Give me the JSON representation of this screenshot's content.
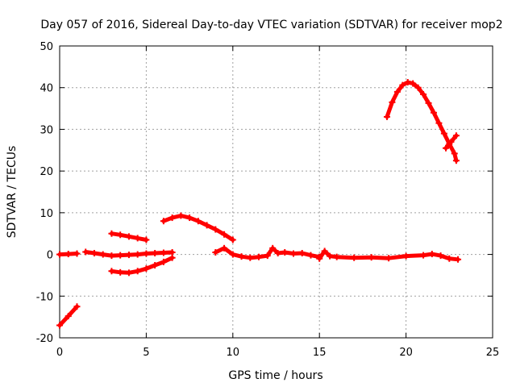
{
  "chart_data": {
    "type": "line",
    "title": "Day 057 of 2016, Sidereal Day-to-day VTEC variation (SDTVAR) for receiver mop2",
    "xlabel": "GPS time / hours",
    "ylabel": "SDTVAR / TECUs",
    "xlim": [
      0,
      25
    ],
    "ylim": [
      -20,
      50
    ],
    "xticks": [
      0,
      5,
      10,
      15,
      20,
      25
    ],
    "yticks": [
      -20,
      -10,
      0,
      10,
      20,
      30,
      40,
      50
    ],
    "xtick_labels": [
      "0",
      "5",
      "10",
      "15",
      "20",
      "25"
    ],
    "ytick_labels": [
      "-20",
      "-10",
      "0",
      "10",
      "20",
      "30",
      "40",
      "50"
    ],
    "grid": true,
    "legend": "none",
    "series_color": "#ff0000",
    "segments": [
      {
        "name": "seg-1",
        "x": [
          0.0,
          0.5,
          1.0
        ],
        "y": [
          -17.0,
          -14.8,
          -12.5
        ]
      },
      {
        "name": "seg-2",
        "x": [
          0.0,
          0.5,
          1.0
        ],
        "y": [
          0.0,
          0.1,
          0.2
        ]
      },
      {
        "name": "seg-3",
        "x": [
          1.5,
          2.0,
          2.5,
          3.0,
          3.5,
          4.0,
          4.5,
          5.0,
          5.5,
          6.0,
          6.5
        ],
        "y": [
          0.6,
          0.3,
          0.0,
          -0.3,
          -0.2,
          -0.1,
          0.0,
          0.2,
          0.3,
          0.4,
          0.5
        ]
      },
      {
        "name": "seg-4",
        "x": [
          3.0,
          3.5,
          4.0,
          4.5,
          5.0
        ],
        "y": [
          5.0,
          4.7,
          4.3,
          3.9,
          3.5
        ]
      },
      {
        "name": "seg-5",
        "x": [
          3.0,
          3.5,
          4.0,
          4.5,
          5.0,
          5.5,
          6.0,
          6.5
        ],
        "y": [
          -4.0,
          -4.3,
          -4.4,
          -4.0,
          -3.4,
          -2.6,
          -1.8,
          -0.8
        ]
      },
      {
        "name": "seg-6",
        "x": [
          6.0,
          6.5,
          7.0,
          7.5,
          8.0,
          8.5,
          9.0,
          9.5,
          10.0
        ],
        "y": [
          8.0,
          8.8,
          9.3,
          8.8,
          8.0,
          7.0,
          6.0,
          4.8,
          3.5
        ]
      },
      {
        "name": "seg-7",
        "x": [
          9.0,
          9.5,
          10.0,
          10.5,
          11.0,
          11.5,
          12.0,
          12.3,
          12.6,
          13.0,
          13.5,
          14.0,
          14.5,
          15.0
        ],
        "y": [
          0.5,
          1.5,
          0.0,
          -0.5,
          -0.8,
          -0.6,
          -0.3,
          1.5,
          0.3,
          0.5,
          0.2,
          0.3,
          -0.2,
          -0.6
        ]
      },
      {
        "name": "seg-8",
        "x": [
          15.0,
          15.3,
          15.6,
          16.0,
          17.0,
          18.0,
          19.0,
          20.0,
          21.0,
          21.5,
          22.0,
          22.5,
          23.0
        ],
        "y": [
          -1.0,
          0.8,
          -0.4,
          -0.6,
          -0.8,
          -0.7,
          -0.9,
          -0.4,
          -0.2,
          0.1,
          -0.3,
          -1.0,
          -1.2
        ]
      },
      {
        "name": "seg-9",
        "x": [
          18.9,
          19.2,
          19.5,
          19.8,
          20.1,
          20.4,
          20.7,
          21.0,
          21.3,
          21.6,
          21.9,
          22.2,
          22.5,
          22.8,
          22.9
        ],
        "y": [
          33.0,
          36.5,
          39.0,
          40.6,
          41.3,
          41.0,
          40.0,
          38.4,
          36.3,
          34.0,
          31.5,
          29.0,
          26.5,
          24.2,
          22.5
        ]
      },
      {
        "name": "seg-10",
        "x": [
          22.3,
          22.6,
          22.9
        ],
        "y": [
          25.5,
          27.0,
          28.5
        ]
      }
    ]
  }
}
